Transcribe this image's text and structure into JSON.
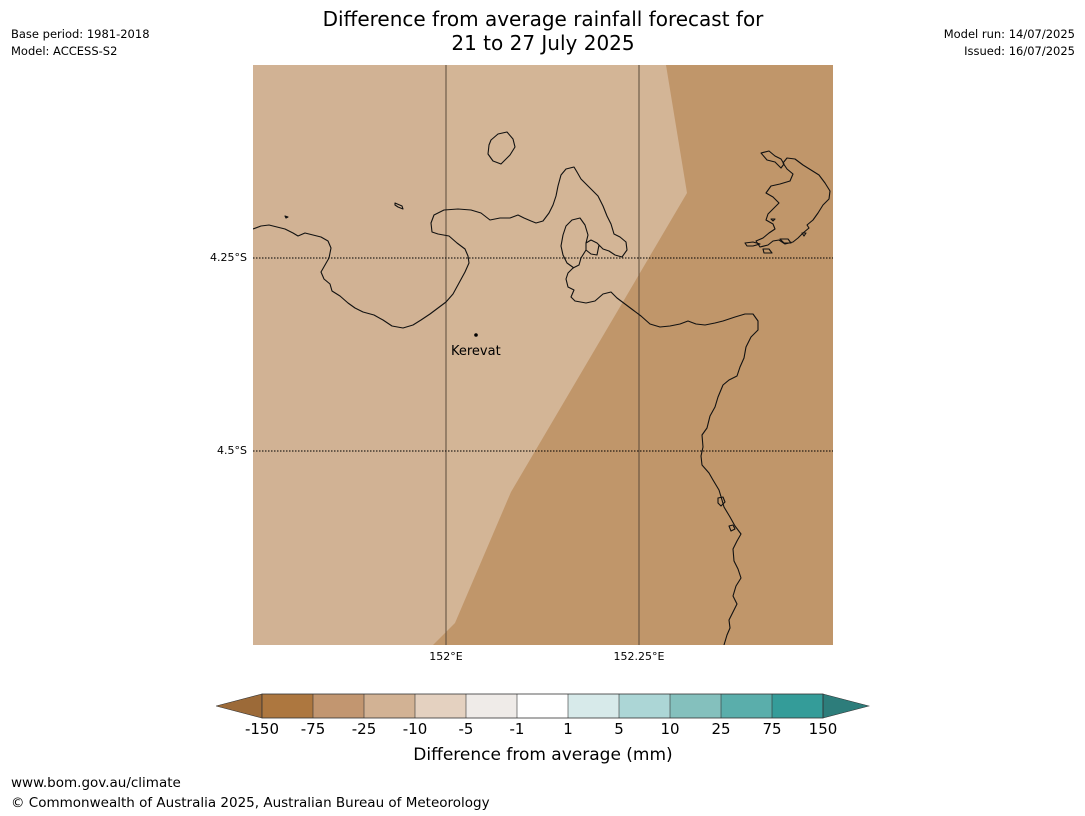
{
  "title_line1": "Difference from average rainfall forecast for",
  "title_line2": "21 to 27 July 2025",
  "base_period": "Base period: 1981-2018",
  "model": "Model: ACCESS-S2",
  "model_run": "Model run: 14/07/2025",
  "issued": "Issued: 16/07/2025",
  "map": {
    "lat_labels": [
      "4.25°S",
      "4.5°S"
    ],
    "lon_labels": [
      "152°E",
      "152.25°E"
    ],
    "place": "Kerevat",
    "colors": {
      "light_region": "#d1b294",
      "lighter_region": "#d3b596",
      "dark_region": "#c0966a"
    }
  },
  "colorbar": {
    "ticks": [
      "-150",
      "-75",
      "-25",
      "-10",
      "-5",
      "-1",
      "1",
      "5",
      "10",
      "25",
      "75",
      "150"
    ],
    "colors": [
      "#9c6a38",
      "#ad773f",
      "#c29670",
      "#d2b294",
      "#e4d1c0",
      "#efebe8",
      "#ffffff",
      "#d7eaea",
      "#acd6d6",
      "#84c0bd",
      "#5aaeab",
      "#349c99",
      "#2d7d7b"
    ],
    "title": "Difference from average (mm)"
  },
  "footer_url": "www.bom.gov.au/climate",
  "footer_copyright": "© Commonwealth of Australia 2025, Australian Bureau of Meteorology"
}
